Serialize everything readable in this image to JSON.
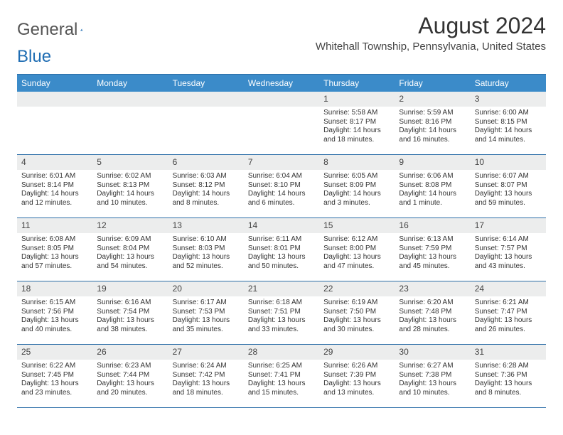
{
  "brand": {
    "word1": "General",
    "word2": "Blue"
  },
  "title": "August 2024",
  "location": "Whitehall Township, Pennsylvania, United States",
  "colors": {
    "header_bg": "#3b8bc9",
    "border": "#2d6fa8",
    "daynum_bg": "#eceded",
    "text": "#333333",
    "logo_gray": "#555555",
    "logo_blue": "#1f6db3"
  },
  "weekdays": [
    "Sunday",
    "Monday",
    "Tuesday",
    "Wednesday",
    "Thursday",
    "Friday",
    "Saturday"
  ],
  "weeks": [
    [
      null,
      null,
      null,
      null,
      {
        "n": "1",
        "sr": "5:58 AM",
        "ss": "8:17 PM",
        "dl": "14 hours and 18 minutes."
      },
      {
        "n": "2",
        "sr": "5:59 AM",
        "ss": "8:16 PM",
        "dl": "14 hours and 16 minutes."
      },
      {
        "n": "3",
        "sr": "6:00 AM",
        "ss": "8:15 PM",
        "dl": "14 hours and 14 minutes."
      }
    ],
    [
      {
        "n": "4",
        "sr": "6:01 AM",
        "ss": "8:14 PM",
        "dl": "14 hours and 12 minutes."
      },
      {
        "n": "5",
        "sr": "6:02 AM",
        "ss": "8:13 PM",
        "dl": "14 hours and 10 minutes."
      },
      {
        "n": "6",
        "sr": "6:03 AM",
        "ss": "8:12 PM",
        "dl": "14 hours and 8 minutes."
      },
      {
        "n": "7",
        "sr": "6:04 AM",
        "ss": "8:10 PM",
        "dl": "14 hours and 6 minutes."
      },
      {
        "n": "8",
        "sr": "6:05 AM",
        "ss": "8:09 PM",
        "dl": "14 hours and 3 minutes."
      },
      {
        "n": "9",
        "sr": "6:06 AM",
        "ss": "8:08 PM",
        "dl": "14 hours and 1 minute."
      },
      {
        "n": "10",
        "sr": "6:07 AM",
        "ss": "8:07 PM",
        "dl": "13 hours and 59 minutes."
      }
    ],
    [
      {
        "n": "11",
        "sr": "6:08 AM",
        "ss": "8:05 PM",
        "dl": "13 hours and 57 minutes."
      },
      {
        "n": "12",
        "sr": "6:09 AM",
        "ss": "8:04 PM",
        "dl": "13 hours and 54 minutes."
      },
      {
        "n": "13",
        "sr": "6:10 AM",
        "ss": "8:03 PM",
        "dl": "13 hours and 52 minutes."
      },
      {
        "n": "14",
        "sr": "6:11 AM",
        "ss": "8:01 PM",
        "dl": "13 hours and 50 minutes."
      },
      {
        "n": "15",
        "sr": "6:12 AM",
        "ss": "8:00 PM",
        "dl": "13 hours and 47 minutes."
      },
      {
        "n": "16",
        "sr": "6:13 AM",
        "ss": "7:59 PM",
        "dl": "13 hours and 45 minutes."
      },
      {
        "n": "17",
        "sr": "6:14 AM",
        "ss": "7:57 PM",
        "dl": "13 hours and 43 minutes."
      }
    ],
    [
      {
        "n": "18",
        "sr": "6:15 AM",
        "ss": "7:56 PM",
        "dl": "13 hours and 40 minutes."
      },
      {
        "n": "19",
        "sr": "6:16 AM",
        "ss": "7:54 PM",
        "dl": "13 hours and 38 minutes."
      },
      {
        "n": "20",
        "sr": "6:17 AM",
        "ss": "7:53 PM",
        "dl": "13 hours and 35 minutes."
      },
      {
        "n": "21",
        "sr": "6:18 AM",
        "ss": "7:51 PM",
        "dl": "13 hours and 33 minutes."
      },
      {
        "n": "22",
        "sr": "6:19 AM",
        "ss": "7:50 PM",
        "dl": "13 hours and 30 minutes."
      },
      {
        "n": "23",
        "sr": "6:20 AM",
        "ss": "7:48 PM",
        "dl": "13 hours and 28 minutes."
      },
      {
        "n": "24",
        "sr": "6:21 AM",
        "ss": "7:47 PM",
        "dl": "13 hours and 26 minutes."
      }
    ],
    [
      {
        "n": "25",
        "sr": "6:22 AM",
        "ss": "7:45 PM",
        "dl": "13 hours and 23 minutes."
      },
      {
        "n": "26",
        "sr": "6:23 AM",
        "ss": "7:44 PM",
        "dl": "13 hours and 20 minutes."
      },
      {
        "n": "27",
        "sr": "6:24 AM",
        "ss": "7:42 PM",
        "dl": "13 hours and 18 minutes."
      },
      {
        "n": "28",
        "sr": "6:25 AM",
        "ss": "7:41 PM",
        "dl": "13 hours and 15 minutes."
      },
      {
        "n": "29",
        "sr": "6:26 AM",
        "ss": "7:39 PM",
        "dl": "13 hours and 13 minutes."
      },
      {
        "n": "30",
        "sr": "6:27 AM",
        "ss": "7:38 PM",
        "dl": "13 hours and 10 minutes."
      },
      {
        "n": "31",
        "sr": "6:28 AM",
        "ss": "7:36 PM",
        "dl": "13 hours and 8 minutes."
      }
    ]
  ],
  "labels": {
    "sunrise": "Sunrise:",
    "sunset": "Sunset:",
    "daylight": "Daylight:"
  }
}
